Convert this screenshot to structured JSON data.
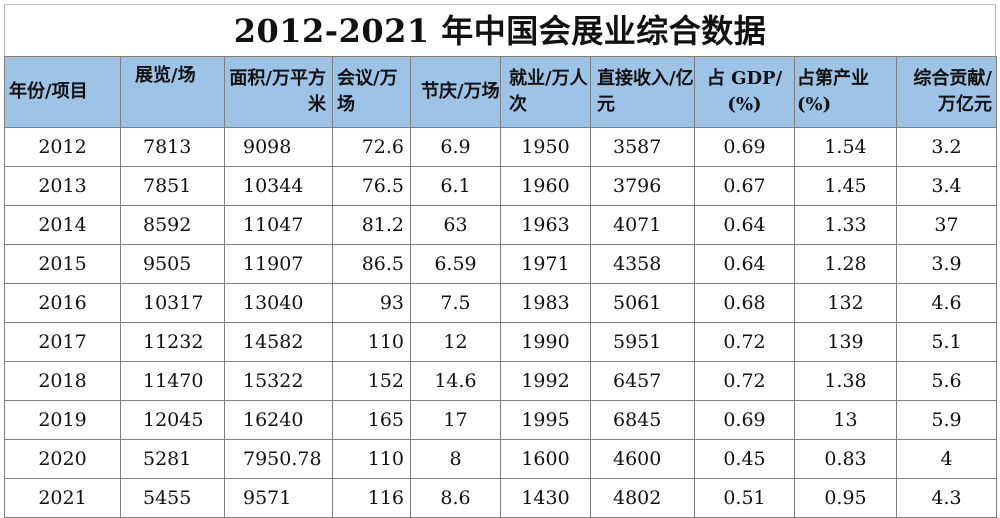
{
  "chart_data": {
    "type": "table",
    "title": "2012-2021 年中国会展业综合数据",
    "columns": [
      "年份/项目",
      "展览/场",
      "面积/万平方米",
      "会议/万场",
      "节庆/万场",
      "就业/万人次",
      "直接收入/亿元",
      "占 GDP/(%)",
      "占第产业(%)",
      "综合贡献/万亿元"
    ],
    "rows": [
      [
        "2012",
        "7813",
        "9098",
        "72.6",
        "6.9",
        "1950",
        "3587",
        "0.69",
        "1.54",
        "3.2"
      ],
      [
        "2013",
        "7851",
        "10344",
        "76.5",
        "6.1",
        "1960",
        "3796",
        "0.67",
        "1.45",
        "3.4"
      ],
      [
        "2014",
        "8592",
        "11047",
        "81.2",
        "63",
        "1963",
        "4071",
        "0.64",
        "1.33",
        "37"
      ],
      [
        "2015",
        "9505",
        "11907",
        "86.5",
        "6.59",
        "1971",
        "4358",
        "0.64",
        "1.28",
        "3.9"
      ],
      [
        "2016",
        "10317",
        "13040",
        "93",
        "7.5",
        "1983",
        "5061",
        "0.68",
        "132",
        "4.6"
      ],
      [
        "2017",
        "11232",
        "14582",
        "110",
        "12",
        "1990",
        "5951",
        "0.72",
        "139",
        "5.1"
      ],
      [
        "2018",
        "11470",
        "15322",
        "152",
        "14.6",
        "1992",
        "6457",
        "0.72",
        "1.38",
        "5.6"
      ],
      [
        "2019",
        "12045",
        "16240",
        "165",
        "17",
        "1995",
        "6845",
        "0.69",
        "13",
        "5.9"
      ],
      [
        "2020",
        "5281",
        "7950.78",
        "110",
        "8",
        "1600",
        "4600",
        "0.45",
        "0.83",
        "4"
      ],
      [
        "2021",
        "5455",
        "9571",
        "116",
        "8.6",
        "1430",
        "4802",
        "0.51",
        "0.95",
        "4.3"
      ]
    ]
  },
  "colors": {
    "header_bg": "#9dc3e6",
    "border": "#7f7f7f"
  }
}
